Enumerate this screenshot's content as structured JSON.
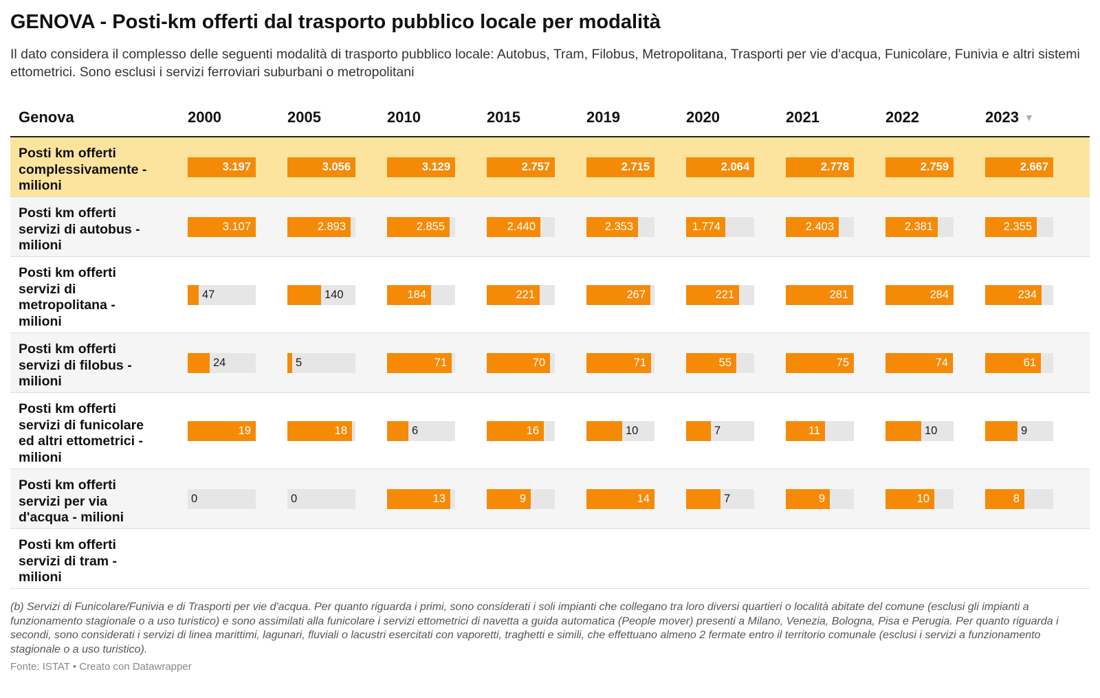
{
  "title": "GENOVA - Posti-km offerti dal trasporto pubblico locale per modalità",
  "subtitle": "Il dato considera il complesso delle seguenti modalità di trasporto pubblico locale: Autobus, Tram, Filobus, Metropolitana, Trasporti per vie d'acqua, Funicolare, Funivia e altri sistemi ettometrici. Sono esclusi i servizi ferroviari suburbani o metropolitani",
  "footnote": "(b) Servizi di Funicolare/Funivia e di Trasporti per vie d'acqua. Per quanto riguarda i primi, sono considerati i soli impianti che collegano tra loro diversi quartieri o località abitate del comune (esclusi gli impianti a funzionamento stagionale o a uso turistico) e sono assimilati alla funicolare i servizi ettometrici di navetta a guida automatica (People mover) presenti a Milano, Venezia, Bologna, Pisa e Perugia. Per quanto riguarda i secondi, sono considerati i servizi di linea marittimi, lagunari, fluviali o lacustri esercitati con vaporetti, traghetti e simili, che effettuano almeno 2 fermate entro il territorio comunale (esclusi i servizi a funzionamento stagionale o a uso turistico).",
  "source": "Fonte: ISTAT • Creato con Datawrapper",
  "colors": {
    "bar": "#f58a07",
    "track": "#e6e6e6",
    "highlight_row": "#fde49e",
    "alt_row": "#f5f5f5"
  },
  "sort_icon": "triangle-down-icon",
  "chart_data": {
    "type": "table",
    "first_column_header": "Genova",
    "columns": [
      "2000",
      "2005",
      "2010",
      "2015",
      "2019",
      "2020",
      "2021",
      "2022",
      "2023"
    ],
    "sorted_by": "2023",
    "rows": [
      {
        "label": "Posti km offerti complessivamente - milioni",
        "values": [
          3197,
          3056,
          3129,
          2757,
          2715,
          2064,
          2778,
          2759,
          2667
        ],
        "display": [
          "3.197",
          "3.056",
          "3.129",
          "2.757",
          "2.715",
          "2.064",
          "2.778",
          "2.759",
          "2.667"
        ],
        "highlighted": true
      },
      {
        "label": "Posti km offerti servizi di autobus - milioni",
        "values": [
          3107,
          2893,
          2855,
          2440,
          2353,
          1774,
          2403,
          2381,
          2355
        ],
        "display": [
          "3.107",
          "2.893",
          "2.855",
          "2.440",
          "2.353",
          "1.774",
          "2.403",
          "2.381",
          "2.355"
        ]
      },
      {
        "label": "Posti km offerti servizi di metropolitana - milioni",
        "values": [
          47,
          140,
          184,
          221,
          267,
          221,
          281,
          284,
          234
        ],
        "display": [
          "47",
          "140",
          "184",
          "221",
          "267",
          "221",
          "281",
          "284",
          "234"
        ]
      },
      {
        "label": "Posti km offerti servizi di filobus - milioni",
        "values": [
          24,
          5,
          71,
          70,
          71,
          55,
          75,
          74,
          61
        ],
        "display": [
          "24",
          "5",
          "71",
          "70",
          "71",
          "55",
          "75",
          "74",
          "61"
        ]
      },
      {
        "label": "Posti km offerti servizi di funicolare ed altri ettometrici - milioni",
        "values": [
          19,
          18,
          6,
          16,
          10,
          7,
          11,
          10,
          9
        ],
        "display": [
          "19",
          "18",
          "6",
          "16",
          "10",
          "7",
          "11",
          "10",
          "9"
        ]
      },
      {
        "label": "Posti km offerti servizi per via d'acqua - milioni",
        "values": [
          0,
          0,
          13,
          9,
          14,
          7,
          9,
          10,
          8
        ],
        "display": [
          "0",
          "0",
          "13",
          "9",
          "14",
          "7",
          "9",
          "10",
          "8"
        ]
      },
      {
        "label": "Posti km offerti servizi di tram - milioni",
        "values": [],
        "display": []
      }
    ]
  }
}
